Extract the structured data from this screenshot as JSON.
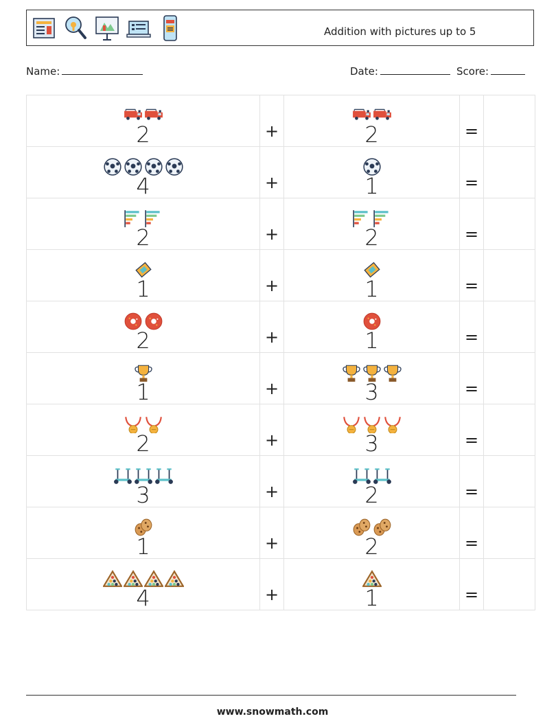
{
  "header": {
    "title": "Addition with pictures up to 5",
    "icons": [
      "newspaper-icon",
      "magnifier-icon",
      "presentation-board-icon",
      "laptop-icon",
      "smartphone-icon"
    ]
  },
  "info": {
    "name_label": "Name:",
    "date_label": "Date:",
    "score_label": "Score:"
  },
  "operators": {
    "plus": "+",
    "equals": "="
  },
  "rows": [
    {
      "a": "2",
      "a_icon": "fire-truck-icon",
      "b": "2",
      "b_icon": "fire-truck-icon"
    },
    {
      "a": "4",
      "a_icon": "soccer-ball-icon",
      "b": "1",
      "b_icon": "soccer-ball-icon"
    },
    {
      "a": "2",
      "a_icon": "bar-chart-icon",
      "b": "2",
      "b_icon": "bar-chart-icon"
    },
    {
      "a": "1",
      "a_icon": "ticket-icon",
      "b": "1",
      "b_icon": "ticket-icon"
    },
    {
      "a": "2",
      "a_icon": "donut-icon",
      "b": "1",
      "b_icon": "donut-icon"
    },
    {
      "a": "1",
      "a_icon": "trophy-icon",
      "b": "3",
      "b_icon": "trophy-icon"
    },
    {
      "a": "2",
      "a_icon": "medal-icon",
      "b": "3",
      "b_icon": "medal-icon"
    },
    {
      "a": "3",
      "a_icon": "hoverboard-icon",
      "b": "2",
      "b_icon": "hoverboard-icon"
    },
    {
      "a": "1",
      "a_icon": "cookie-icon",
      "b": "2",
      "b_icon": "cookie-icon"
    },
    {
      "a": "4",
      "a_icon": "billiard-rack-icon",
      "b": "1",
      "b_icon": "billiard-rack-icon"
    }
  ],
  "footer": {
    "website": "www.snowmath.com"
  }
}
